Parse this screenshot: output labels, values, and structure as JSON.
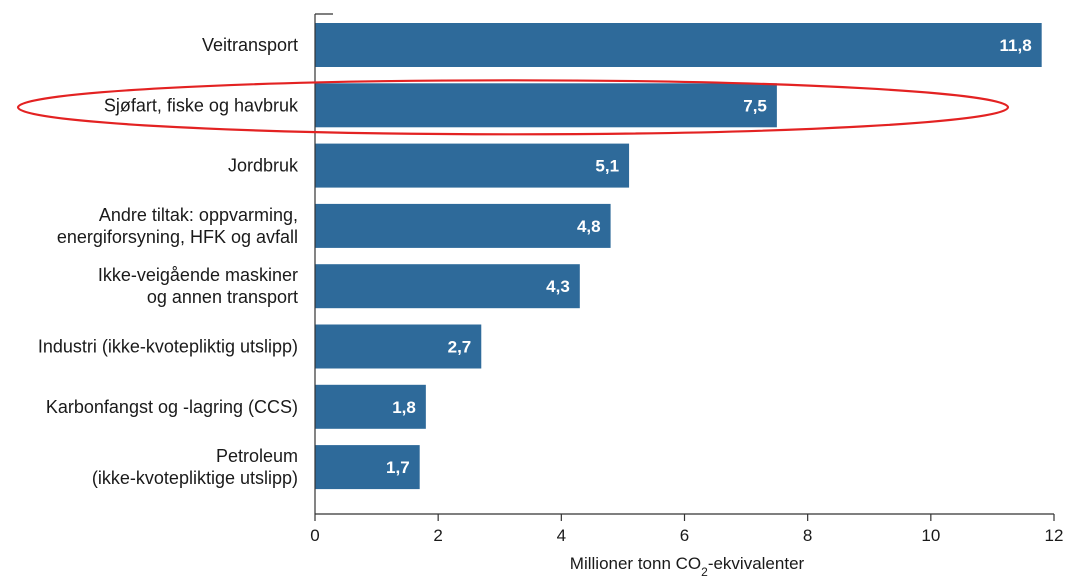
{
  "chart_data": {
    "type": "bar",
    "orientation": "horizontal",
    "categories": [
      [
        "Veitransport"
      ],
      [
        "Sjøfart, fiske og havbruk"
      ],
      [
        "Jordbruk"
      ],
      [
        "Andre tiltak: oppvarming,",
        "energiforsyning, HFK og avfall"
      ],
      [
        "Ikke-veigående maskiner",
        "og annen transport"
      ],
      [
        "Industri (ikke-kvotepliktig utslipp)"
      ],
      [
        "Karbonfangst og -lagring (CCS)"
      ],
      [
        "Petroleum",
        "(ikke-kvotepliktige utslipp)"
      ]
    ],
    "values": [
      11.8,
      7.5,
      5.1,
      4.8,
      4.3,
      2.7,
      1.8,
      1.7
    ],
    "value_labels": [
      "11,8",
      "7,5",
      "5,1",
      "4,8",
      "4,3",
      "2,7",
      "1,8",
      "1,7"
    ],
    "xlim": [
      0,
      12
    ],
    "x_ticks": [
      0,
      2,
      4,
      6,
      8,
      10,
      12
    ],
    "x_tick_labels": [
      "0",
      "2",
      "4",
      "6",
      "8",
      "10",
      "12"
    ],
    "xlabel": {
      "prefix": "Millioner tonn CO",
      "subscript": "2",
      "suffix": "-ekvivalenter"
    },
    "title": "",
    "grid": false,
    "legend": "none",
    "highlighted_category_index": 1,
    "colors": {
      "bar": "#2e6a9a",
      "highlight": "#e32222",
      "axis": "#333333"
    }
  }
}
